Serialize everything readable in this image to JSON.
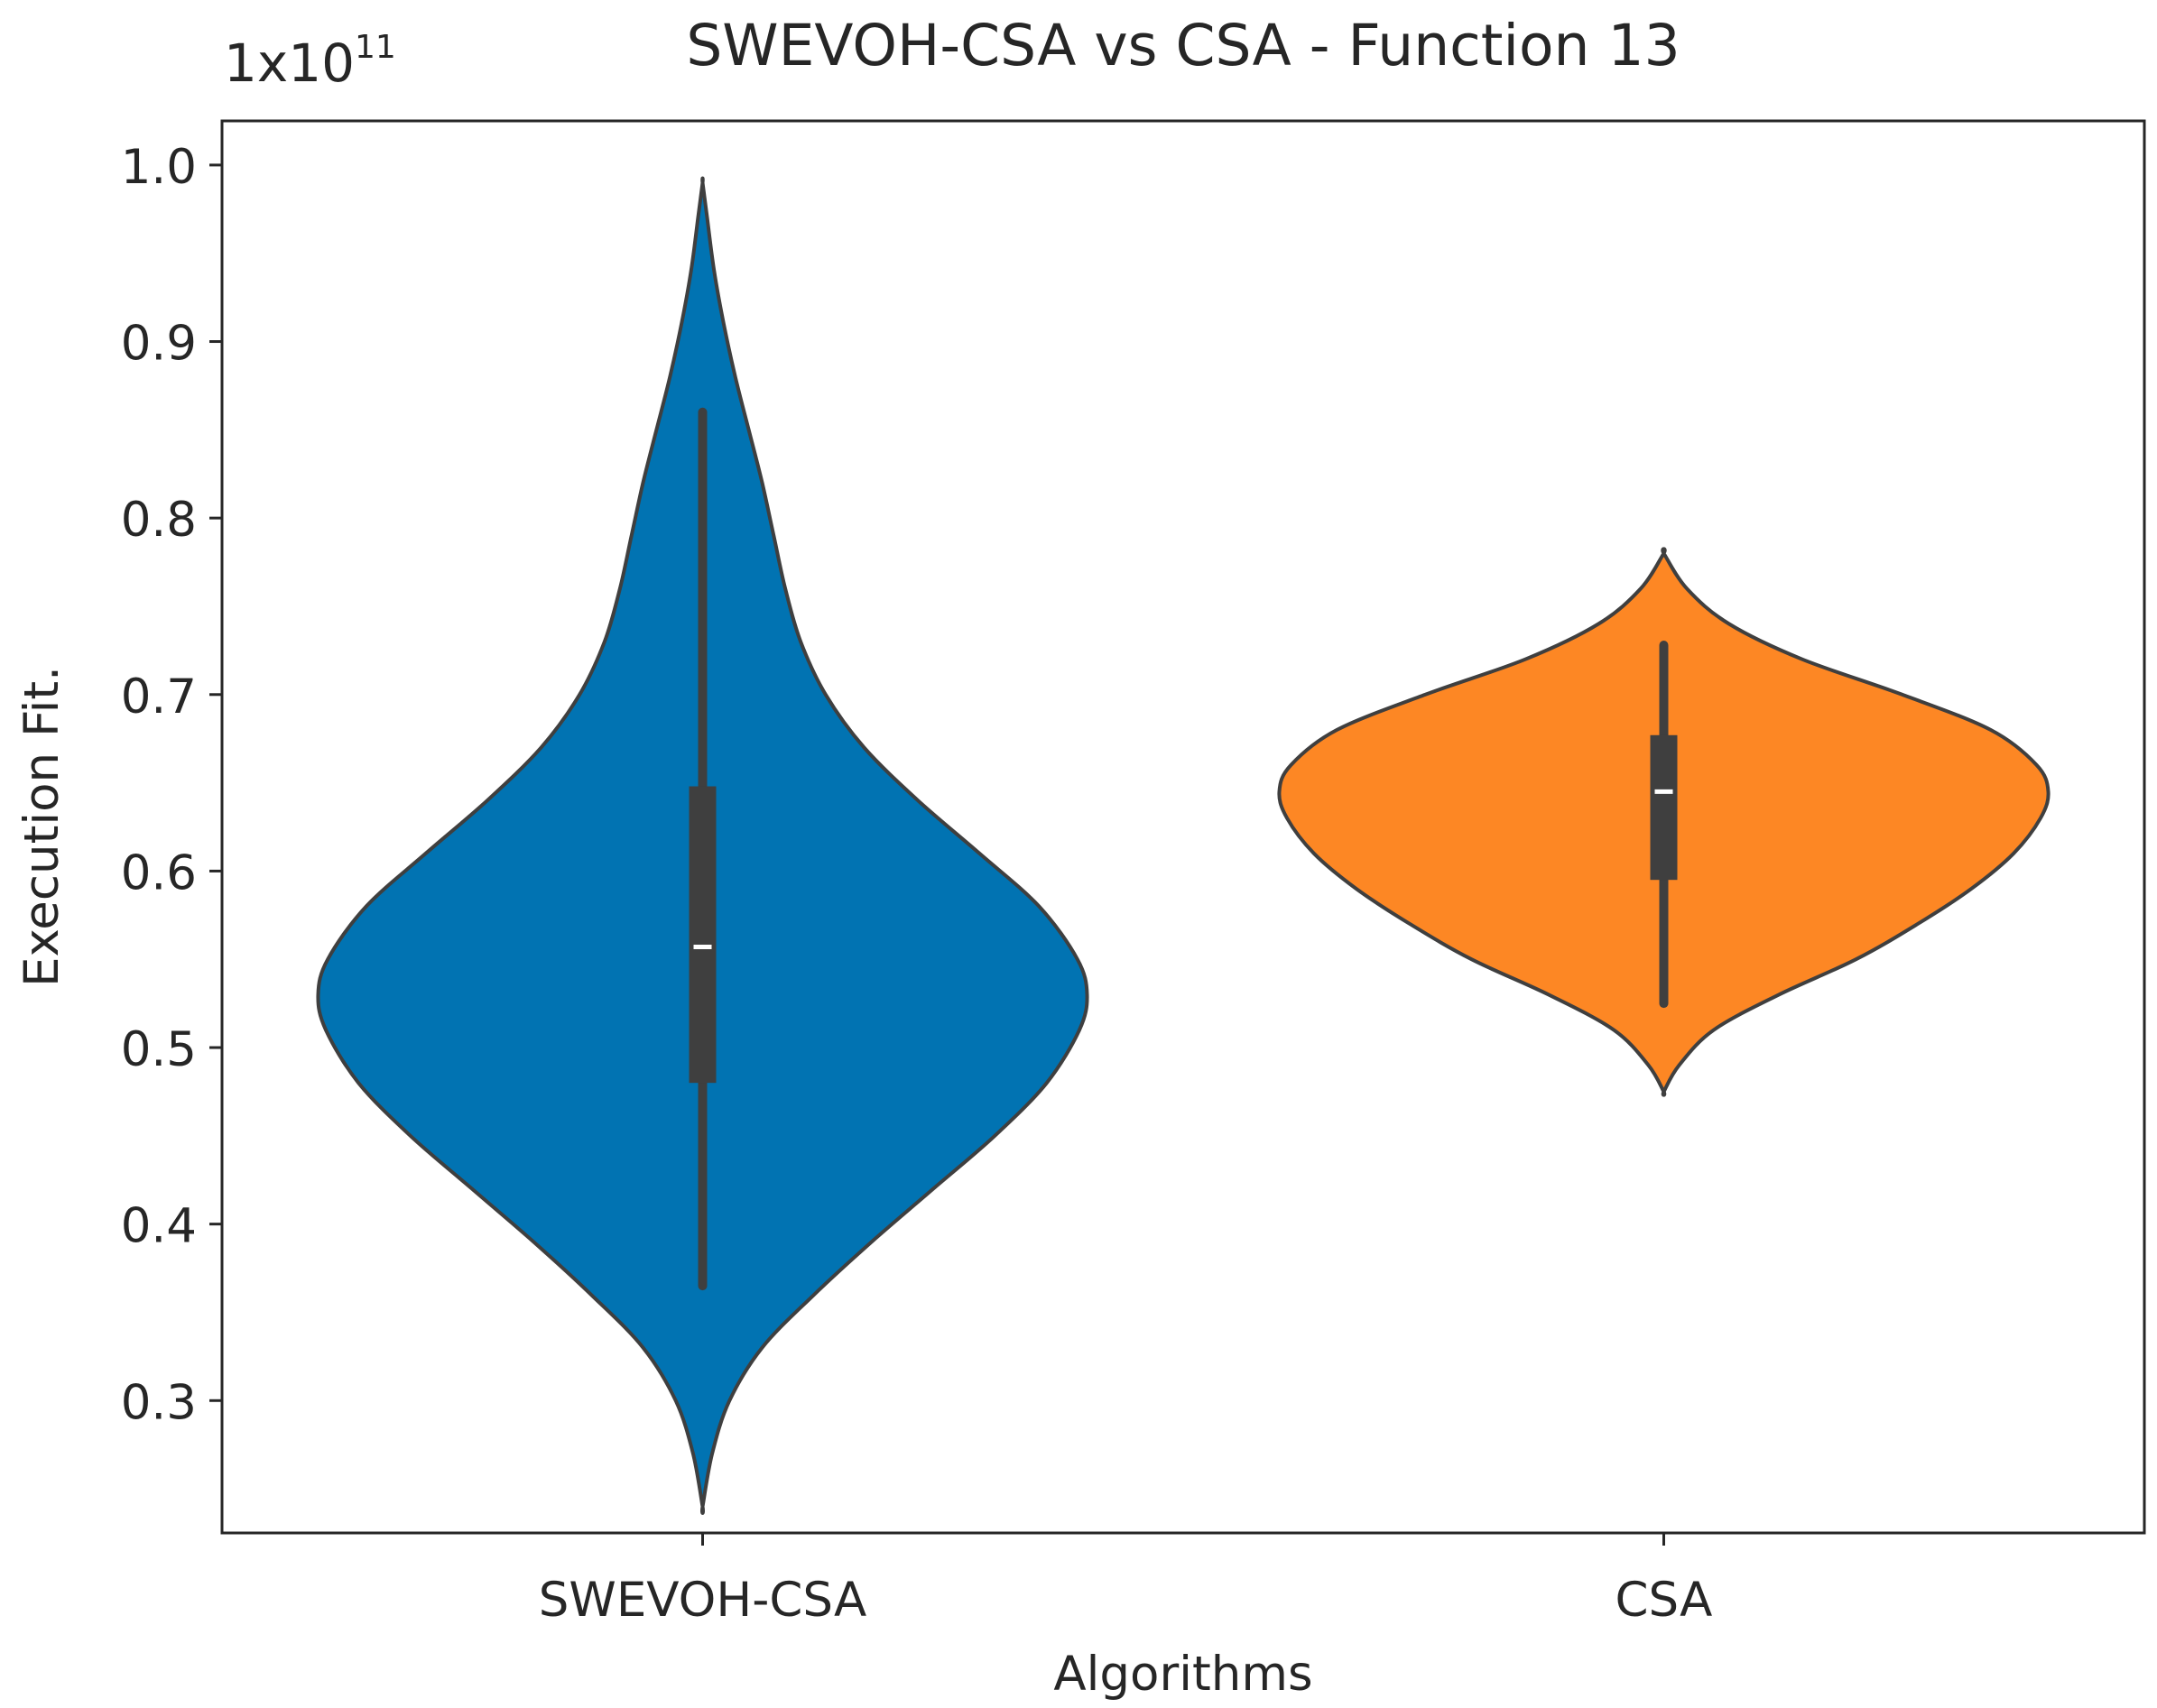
{
  "chart_data": {
    "type": "violin",
    "title": "SWEVOH-CSA vs CSA - Function 13",
    "xlabel": "Algorithms",
    "ylabel": "Execution Fit.",
    "y_scale_label_base": "1x10",
    "y_scale_label_exp": "11",
    "ylim": [
      0.225,
      1.025
    ],
    "yticks": [
      0.3,
      0.4,
      0.5,
      0.6,
      0.7,
      0.8,
      0.9,
      1.0
    ],
    "ytick_labels": [
      "0.3",
      "0.4",
      "0.5",
      "0.6",
      "0.7",
      "0.8",
      "0.9",
      "1.0"
    ],
    "categories": [
      "SWEVOH-CSA",
      "CSA"
    ],
    "series": [
      {
        "name": "SWEVOH-CSA",
        "color": "#0173b2",
        "min": 0.24,
        "max": 0.99,
        "whisker_low": 0.365,
        "whisker_high": 0.86,
        "q1": 0.48,
        "median": 0.557,
        "q3": 0.648,
        "density": [
          [
            0.24,
            0.0
          ],
          [
            0.27,
            0.025
          ],
          [
            0.3,
            0.07
          ],
          [
            0.33,
            0.155
          ],
          [
            0.36,
            0.29
          ],
          [
            0.39,
            0.44
          ],
          [
            0.42,
            0.6
          ],
          [
            0.45,
            0.76
          ],
          [
            0.48,
            0.895
          ],
          [
            0.51,
            0.98
          ],
          [
            0.53,
            1.0
          ],
          [
            0.55,
            0.975
          ],
          [
            0.58,
            0.875
          ],
          [
            0.61,
            0.72
          ],
          [
            0.64,
            0.56
          ],
          [
            0.67,
            0.42
          ],
          [
            0.7,
            0.32
          ],
          [
            0.73,
            0.255
          ],
          [
            0.76,
            0.215
          ],
          [
            0.79,
            0.185
          ],
          [
            0.82,
            0.155
          ],
          [
            0.85,
            0.12
          ],
          [
            0.88,
            0.085
          ],
          [
            0.91,
            0.055
          ],
          [
            0.94,
            0.03
          ],
          [
            0.97,
            0.012
          ],
          [
            0.99,
            0.0
          ]
        ]
      },
      {
        "name": "CSA",
        "color": "#fd8724",
        "min": 0.475,
        "max": 0.78,
        "whisker_low": 0.525,
        "whisker_high": 0.728,
        "q1": 0.595,
        "median": 0.645,
        "q3": 0.677,
        "density": [
          [
            0.475,
            0.0
          ],
          [
            0.49,
            0.04
          ],
          [
            0.51,
            0.13
          ],
          [
            0.53,
            0.3
          ],
          [
            0.55,
            0.5
          ],
          [
            0.57,
            0.66
          ],
          [
            0.59,
            0.8
          ],
          [
            0.61,
            0.91
          ],
          [
            0.63,
            0.98
          ],
          [
            0.645,
            1.0
          ],
          [
            0.66,
            0.97
          ],
          [
            0.68,
            0.85
          ],
          [
            0.7,
            0.62
          ],
          [
            0.72,
            0.36
          ],
          [
            0.74,
            0.17
          ],
          [
            0.76,
            0.06
          ],
          [
            0.78,
            0.0
          ]
        ]
      }
    ]
  }
}
